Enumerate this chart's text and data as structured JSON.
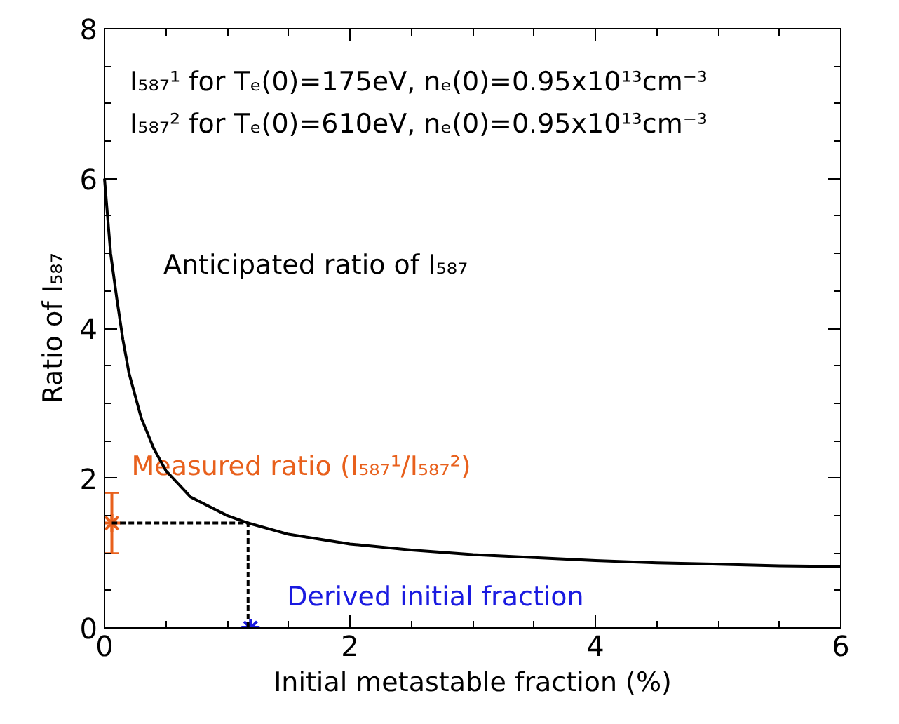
{
  "chart_data": {
    "type": "line",
    "xlabel": "Initial metastable fraction (%)",
    "ylabel": "Ratio of I₅₈₇",
    "annotations": [
      "I₅₈₇¹ for Tₑ(0)=175eV, nₑ(0)=0.95x10¹³cm⁻³",
      "I₅₈₇² for Tₑ(0)=610eV, nₑ(0)=0.95x10¹³cm⁻³"
    ],
    "xlim": [
      0,
      6
    ],
    "ylim": [
      0,
      8
    ],
    "xticks": [
      0,
      {
        "value": 0.5,
        "label": null
      },
      {
        "value": 1,
        "label": null
      },
      {
        "value": 1.5,
        "label": null
      },
      2,
      {
        "value": 2.5,
        "label": null
      },
      {
        "value": 3,
        "label": null
      },
      {
        "value": 3.5,
        "label": null
      },
      4,
      {
        "value": 4.5,
        "label": null
      },
      {
        "value": 5,
        "label": null
      },
      {
        "value": 5.5,
        "label": null
      },
      6
    ],
    "yticks": [
      0,
      {
        "value": 0.5,
        "label": null
      },
      {
        "value": 1,
        "label": null
      },
      {
        "value": 1.5,
        "label": null
      },
      2,
      {
        "value": 2.5,
        "label": null
      },
      {
        "value": 3,
        "label": null
      },
      {
        "value": 3.5,
        "label": null
      },
      4,
      {
        "value": 4.5,
        "label": null
      },
      {
        "value": 5,
        "label": null
      },
      {
        "value": 5.5,
        "label": null
      },
      6,
      {
        "value": 6.5,
        "label": null
      },
      {
        "value": 7,
        "label": null
      },
      {
        "value": 7.5,
        "label": null
      },
      8
    ],
    "grid": false,
    "series": [
      {
        "name": "Anticipated ratio of I₅₈₇",
        "color": "#000000",
        "line_style": "solid",
        "x": [
          0,
          0.05,
          0.1,
          0.15,
          0.2,
          0.3,
          0.4,
          0.5,
          0.7,
          1.0,
          1.17,
          1.5,
          2,
          2.5,
          3,
          3.5,
          4,
          4.5,
          5,
          5.5,
          6
        ],
        "values": [
          6.0,
          5.0,
          4.4,
          3.85,
          3.4,
          2.8,
          2.4,
          2.1,
          1.75,
          1.5,
          1.4,
          1.25,
          1.12,
          1.04,
          0.98,
          0.94,
          0.9,
          0.87,
          0.85,
          0.83,
          0.82
        ]
      },
      {
        "color": "#000000",
        "line_style": "dashed",
        "x": [
          1.17,
          1.17,
          0.06
        ],
        "values": [
          0,
          1.4,
          1.4
        ]
      },
      {
        "name": "Measured ratio (I₅₈₇¹/I₅₈₇²)",
        "type": "scatter",
        "marker": "cross",
        "color": "#e8601c",
        "x": [
          0.06
        ],
        "values": [
          1.4
        ],
        "errors": [
          [
            1.0,
            1.8
          ]
        ]
      },
      {
        "name": "Derived initial fraction",
        "type": "scatter",
        "marker": "cross",
        "color": "#1a1ae0",
        "x": [
          1.19
        ],
        "values": [
          0
        ]
      }
    ]
  }
}
